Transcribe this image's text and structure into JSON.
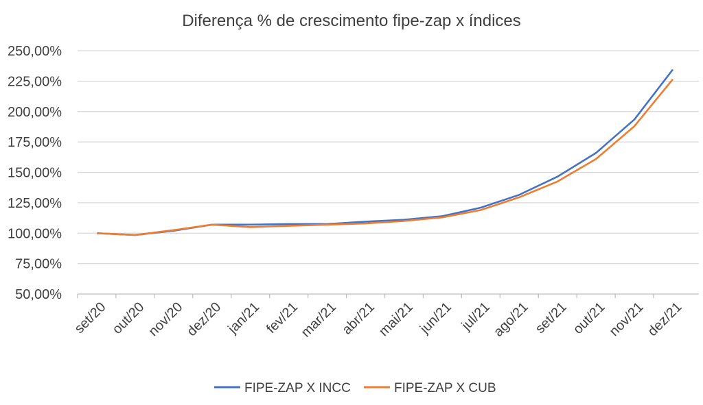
{
  "chart_data": {
    "type": "line",
    "title": "Diferença % de crescimento fipe-zap x índices",
    "xlabel": "",
    "ylabel": "",
    "categories": [
      "set/20",
      "out/20",
      "nov/20",
      "dez/20",
      "jan/21",
      "fev/21",
      "mar/21",
      "abr/21",
      "mai/21",
      "jun/21",
      "jul/21",
      "ago/21",
      "set/21",
      "out/21",
      "nov/21",
      "dez/21"
    ],
    "ylim": [
      50,
      250
    ],
    "yticks": [
      50,
      75,
      100,
      125,
      150,
      175,
      200,
      225,
      250
    ],
    "ytick_labels": [
      "50,00%",
      "75,00%",
      "100,00%",
      "125,00%",
      "150,00%",
      "175,00%",
      "200,00%",
      "225,00%",
      "250,00%"
    ],
    "grid": "horizontal",
    "legend_position": "bottom",
    "series": [
      {
        "name": "FIPE-ZAP X INCC",
        "color": "#4472C4",
        "values": [
          100,
          98.5,
          102,
          107,
          107,
          107.5,
          107.5,
          109.5,
          111,
          114,
          121,
          131.5,
          146.5,
          166,
          193.5,
          234.5
        ]
      },
      {
        "name": "FIPE-ZAP X CUB",
        "color": "#ED7D31",
        "values": [
          100,
          98.5,
          102.5,
          107,
          105,
          106,
          107,
          108,
          110,
          113,
          119,
          129.5,
          142.5,
          161,
          188,
          226.5
        ]
      }
    ]
  }
}
